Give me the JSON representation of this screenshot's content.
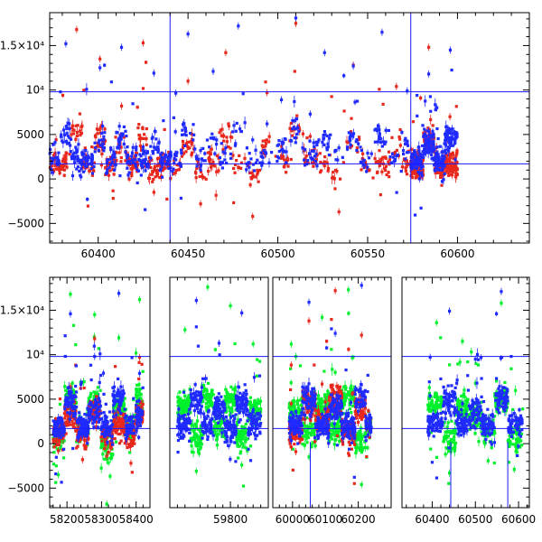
{
  "chart_data": [
    {
      "type": "scatter",
      "panel": "top",
      "title": "",
      "xlabel": "",
      "ylabel": "",
      "xlim": [
        60373,
        60640
      ],
      "ylim": [
        -7200,
        18700
      ],
      "x_ticks": [
        60400,
        60450,
        60500,
        60550,
        60600
      ],
      "y_ticks": [
        {
          "value": -5000,
          "label": "−5000"
        },
        {
          "value": 0,
          "label": "0"
        },
        {
          "value": 5000,
          "label": "5000"
        },
        {
          "value": 10000,
          "label": "10⁴"
        },
        {
          "value": 15000,
          "label": "1.5×10⁴"
        }
      ],
      "reference_lines": {
        "horizontal": [
          9800,
          1700
        ],
        "vertical": [
          60440,
          60574
        ],
        "line_color": "#1a1aff"
      },
      "series": [
        {
          "color": "#e8281c",
          "segments": [
            {
              "x_start": 60373,
              "x_end": 60440,
              "points": [
                {
                  "x": 60376,
                  "y": 1500
                },
                {
                  "x": 60382,
                  "y": 2500
                },
                {
                  "x": 60388,
                  "y": 16800
                },
                {
                  "x": 60395,
                  "y": 900
                },
                {
                  "x": 60401,
                  "y": 13500
                },
                {
                  "x": 60407,
                  "y": 1800
                },
                {
                  "x": 60413,
                  "y": 8200
                },
                {
                  "x": 60419,
                  "y": 1200
                },
                {
                  "x": 60425,
                  "y": 15300
                },
                {
                  "x": 60431,
                  "y": -1500
                },
                {
                  "x": 60437,
                  "y": 2200
                }
              ]
            },
            {
              "x_start": 60440,
              "x_end": 60574,
              "points": [
                {
                  "x": 60443,
                  "y": 700
                },
                {
                  "x": 60450,
                  "y": 11000
                },
                {
                  "x": 60457,
                  "y": -2800
                },
                {
                  "x": 60464,
                  "y": 1900
                },
                {
                  "x": 60471,
                  "y": 14200
                },
                {
                  "x": 60478,
                  "y": 1300
                },
                {
                  "x": 60486,
                  "y": -4200
                },
                {
                  "x": 60494,
                  "y": 9700
                },
                {
                  "x": 60502,
                  "y": 2600
                },
                {
                  "x": 60510,
                  "y": 17500
                },
                {
                  "x": 60518,
                  "y": 4800
                },
                {
                  "x": 60526,
                  "y": 1500
                },
                {
                  "x": 60534,
                  "y": -3700
                },
                {
                  "x": 60542,
                  "y": 12800
                },
                {
                  "x": 60550,
                  "y": 1100
                },
                {
                  "x": 60558,
                  "y": 800
                },
                {
                  "x": 60566,
                  "y": 10400
                },
                {
                  "x": 60572,
                  "y": 1600
                }
              ]
            },
            {
              "x_start": 60574,
              "x_end": 60600,
              "points": [
                {
                  "x": 60578,
                  "y": 900
                },
                {
                  "x": 60584,
                  "y": 14800
                },
                {
                  "x": 60590,
                  "y": 700
                },
                {
                  "x": 60596,
                  "y": 1200
                }
              ]
            }
          ]
        },
        {
          "color": "#1f2bff",
          "segments": [
            {
              "x_start": 60373,
              "x_end": 60440,
              "points": [
                {
                  "x": 60376,
                  "y": 4100
                },
                {
                  "x": 60382,
                  "y": 15200
                },
                {
                  "x": 60388,
                  "y": 3000
                },
                {
                  "x": 60395,
                  "y": 2400
                },
                {
                  "x": 60401,
                  "y": 12500
                },
                {
                  "x": 60407,
                  "y": 3300
                },
                {
                  "x": 60413,
                  "y": 14800
                },
                {
                  "x": 60419,
                  "y": 2900
                },
                {
                  "x": 60425,
                  "y": 3600
                },
                {
                  "x": 60431,
                  "y": 11900
                },
                {
                  "x": 60437,
                  "y": 2500
                }
              ]
            },
            {
              "x_start": 60440,
              "x_end": 60574,
              "points": [
                {
                  "x": 60443,
                  "y": 2800
                },
                {
                  "x": 60450,
                  "y": 16300
                },
                {
                  "x": 60457,
                  "y": 3200
                },
                {
                  "x": 60464,
                  "y": 12100
                },
                {
                  "x": 60471,
                  "y": 3500
                },
                {
                  "x": 60478,
                  "y": 17200
                },
                {
                  "x": 60486,
                  "y": 4400
                },
                {
                  "x": 60494,
                  "y": 6200
                },
                {
                  "x": 60502,
                  "y": 8900
                },
                {
                  "x": 60510,
                  "y": 18100
                },
                {
                  "x": 60518,
                  "y": 7300
                },
                {
                  "x": 60526,
                  "y": 14200
                },
                {
                  "x": 60534,
                  "y": 3500
                },
                {
                  "x": 60542,
                  "y": 12700
                },
                {
                  "x": 60550,
                  "y": 2900
                },
                {
                  "x": 60558,
                  "y": 16500
                },
                {
                  "x": 60566,
                  "y": 2600
                },
                {
                  "x": 60572,
                  "y": 9900
                }
              ]
            },
            {
              "x_start": 60574,
              "x_end": 60600,
              "points": [
                {
                  "x": 60578,
                  "y": 2200
                },
                {
                  "x": 60584,
                  "y": 11800
                },
                {
                  "x": 60590,
                  "y": 1900
                },
                {
                  "x": 60596,
                  "y": 14500
                }
              ]
            }
          ]
        }
      ]
    },
    {
      "type": "scatter",
      "panel": "bottom",
      "title": "",
      "xlabel": "",
      "ylabel": "",
      "ylim": [
        -7200,
        18700
      ],
      "broken_axis": true,
      "x_segments": [
        {
          "xlim": [
            58150,
            58440
          ],
          "ticks": [
            58200,
            58300,
            58400
          ]
        },
        {
          "xlim": [
            59640,
            59900
          ],
          "ticks": [
            59800
          ]
        },
        {
          "xlim": [
            59940,
            60300
          ],
          "ticks": [
            60000,
            60100,
            60200
          ]
        },
        {
          "xlim": [
            60330,
            60625
          ],
          "ticks": [
            60400,
            60500,
            60600
          ]
        }
      ],
      "y_ticks": [
        {
          "value": -5000,
          "label": "−5000"
        },
        {
          "value": 0,
          "label": "0"
        },
        {
          "value": 5000,
          "label": "5000"
        },
        {
          "value": 10000,
          "label": "10⁴"
        },
        {
          "value": 15000,
          "label": "1.5×10⁴"
        }
      ],
      "reference_lines": {
        "horizontal": [
          9800,
          1700
        ],
        "vertical": [
          60054,
          60443,
          60575
        ],
        "line_color": "#1a1aff"
      },
      "series": [
        {
          "color": "#00f02c",
          "segments": [
            {
              "x_start": 58160,
              "x_end": 58420,
              "points": [
                {
                  "x": 58175,
                  "y": -3500
                },
                {
                  "x": 58210,
                  "y": 16800
                },
                {
                  "x": 58245,
                  "y": 1400
                },
                {
                  "x": 58280,
                  "y": 14500
                },
                {
                  "x": 58315,
                  "y": -6800
                },
                {
                  "x": 58350,
                  "y": 11900
                },
                {
                  "x": 58385,
                  "y": 2100
                },
                {
                  "x": 58410,
                  "y": 16200
                }
              ]
            },
            {
              "x_start": 59660,
              "x_end": 59880,
              "points": [
                {
                  "x": 59680,
                  "y": 12800
                },
                {
                  "x": 59710,
                  "y": -3100
                },
                {
                  "x": 59740,
                  "y": 17600
                },
                {
                  "x": 59770,
                  "y": 2400
                },
                {
                  "x": 59800,
                  "y": 15500
                },
                {
                  "x": 59830,
                  "y": -2400
                },
                {
                  "x": 59860,
                  "y": 11200
                }
              ]
            },
            {
              "x_start": 59990,
              "x_end": 60240,
              "points": [
                {
                  "x": 60010,
                  "y": 9800
                },
                {
                  "x": 60050,
                  "y": -1500
                },
                {
                  "x": 60090,
                  "y": 14200
                },
                {
                  "x": 60130,
                  "y": 1900
                },
                {
                  "x": 60170,
                  "y": 17300
                },
                {
                  "x": 60210,
                  "y": -4600
                },
                {
                  "x": 60235,
                  "y": 2600
                }
              ]
            },
            {
              "x_start": 60390,
              "x_end": 60610,
              "points": [
                {
                  "x": 60410,
                  "y": 13600
                },
                {
                  "x": 60440,
                  "y": -3300
                },
                {
                  "x": 60470,
                  "y": 11500
                },
                {
                  "x": 60500,
                  "y": 6800
                },
                {
                  "x": 60530,
                  "y": 1100
                },
                {
                  "x": 60560,
                  "y": 15800
                },
                {
                  "x": 60590,
                  "y": -2900
                }
              ]
            }
          ]
        },
        {
          "color": "#e8281c",
          "segments": [
            {
              "x_start": 58160,
              "x_end": 58420,
              "points": [
                {
                  "x": 58175,
                  "y": -800
                },
                {
                  "x": 58210,
                  "y": 6400
                },
                {
                  "x": 58245,
                  "y": -1800
                },
                {
                  "x": 58280,
                  "y": 11800
                },
                {
                  "x": 58315,
                  "y": -1400
                },
                {
                  "x": 58350,
                  "y": 3900
                },
                {
                  "x": 58385,
                  "y": -2200
                },
                {
                  "x": 58410,
                  "y": 9700
                }
              ]
            },
            {
              "x_start": 59660,
              "x_end": 59880,
              "points": []
            },
            {
              "x_start": 59990,
              "x_end": 60240,
              "points": [
                {
                  "x": 60010,
                  "y": -900
                },
                {
                  "x": 60050,
                  "y": 13800
                },
                {
                  "x": 60090,
                  "y": 6700
                },
                {
                  "x": 60130,
                  "y": 17200
                },
                {
                  "x": 60170,
                  "y": -1100
                },
                {
                  "x": 60210,
                  "y": 12200
                },
                {
                  "x": 60235,
                  "y": 2900
                }
              ]
            },
            {
              "x_start": 60390,
              "x_end": 60610,
              "points": []
            }
          ]
        },
        {
          "color": "#1f2bff",
          "segments": [
            {
              "x_start": 58160,
              "x_end": 58420,
              "points": [
                {
                  "x": 58175,
                  "y": 900
                },
                {
                  "x": 58210,
                  "y": 14600
                },
                {
                  "x": 58245,
                  "y": 2200
                },
                {
                  "x": 58280,
                  "y": 9800
                },
                {
                  "x": 58315,
                  "y": 1500
                },
                {
                  "x": 58350,
                  "y": 16900
                },
                {
                  "x": 58385,
                  "y": 2800
                },
                {
                  "x": 58410,
                  "y": 7900
                }
              ]
            },
            {
              "x_start": 59660,
              "x_end": 59880,
              "points": [
                {
                  "x": 59680,
                  "y": 2600
                },
                {
                  "x": 59710,
                  "y": 16100
                },
                {
                  "x": 59740,
                  "y": 3100
                },
                {
                  "x": 59770,
                  "y": 11300
                },
                {
                  "x": 59800,
                  "y": 1900
                },
                {
                  "x": 59830,
                  "y": 14700
                },
                {
                  "x": 59860,
                  "y": 3800
                }
              ]
            },
            {
              "x_start": 59990,
              "x_end": 60240,
              "points": [
                {
                  "x": 60010,
                  "y": 2400
                },
                {
                  "x": 60050,
                  "y": 15900
                },
                {
                  "x": 60090,
                  "y": 3300
                },
                {
                  "x": 60130,
                  "y": 12400
                },
                {
                  "x": 60170,
                  "y": 2100
                },
                {
                  "x": 60210,
                  "y": 17800
                },
                {
                  "x": 60235,
                  "y": 3200
                }
              ]
            },
            {
              "x_start": 60390,
              "x_end": 60610,
              "points": [
                {
                  "x": 60410,
                  "y": 3100
                },
                {
                  "x": 60440,
                  "y": 14900
                },
                {
                  "x": 60470,
                  "y": 4500
                },
                {
                  "x": 60500,
                  "y": 9500
                },
                {
                  "x": 60530,
                  "y": 2800
                },
                {
                  "x": 60560,
                  "y": 17100
                },
                {
                  "x": 60590,
                  "y": 3400
                }
              ]
            }
          ]
        }
      ]
    }
  ]
}
